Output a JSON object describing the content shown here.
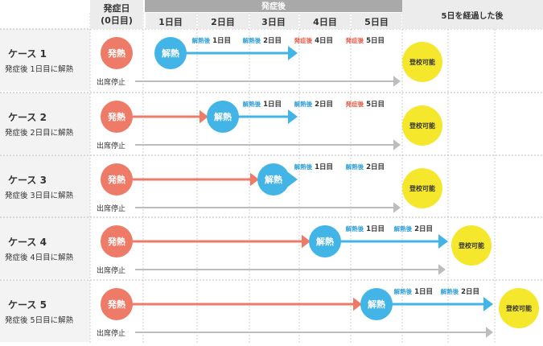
{
  "header": {
    "onset_line1": "発症日",
    "onset_line2": "(0日目)",
    "after_onset": "発症後",
    "days": [
      "1日目",
      "2日目",
      "3日目",
      "4日目",
      "5日目"
    ],
    "after_five": "5日を経過した後"
  },
  "labels": {
    "fever": "発熱",
    "fever_resolved": "解熱",
    "attendance_stop": "出席停止",
    "can_attend": "登校可能"
  },
  "cases": [
    {
      "title": "ケース 1",
      "subtitle": "発症後 1日目に解熱",
      "resolve_day": 1,
      "annotations": [
        {
          "prefix": "解熱後",
          "count": "1日目",
          "kind": "blue"
        },
        {
          "prefix": "解熱後",
          "count": "2日目",
          "kind": "blue"
        },
        {
          "prefix": "発症後",
          "count": "4日目",
          "kind": "red"
        },
        {
          "prefix": "発症後",
          "count": "5日目",
          "kind": "red"
        }
      ]
    },
    {
      "title": "ケース 2",
      "subtitle": "発症後 2日目に解熱",
      "resolve_day": 2,
      "annotations": [
        {
          "prefix": "解熱後",
          "count": "1日目",
          "kind": "blue"
        },
        {
          "prefix": "解熱後",
          "count": "2日目",
          "kind": "blue"
        },
        {
          "prefix": "発症後",
          "count": "5日目",
          "kind": "red"
        }
      ]
    },
    {
      "title": "ケース 3",
      "subtitle": "発症後 3日目に解熱",
      "resolve_day": 3,
      "annotations": [
        {
          "prefix": "解熱後",
          "count": "1日目",
          "kind": "blue"
        },
        {
          "prefix": "解熱後",
          "count": "2日目",
          "kind": "blue"
        }
      ]
    },
    {
      "title": "ケース 4",
      "subtitle": "発症後 4日目に解熱",
      "resolve_day": 4,
      "annotations": [
        {
          "prefix": "解熱後",
          "count": "1日目",
          "kind": "blue"
        },
        {
          "prefix": "解熱後",
          "count": "2日目",
          "kind": "blue"
        }
      ]
    },
    {
      "title": "ケース 5",
      "subtitle": "発症後 5日目に解熱",
      "resolve_day": 5,
      "annotations": [
        {
          "prefix": "解熱後",
          "count": "1日目",
          "kind": "blue"
        },
        {
          "prefix": "解熱後",
          "count": "2日目",
          "kind": "blue"
        }
      ]
    }
  ],
  "colors": {
    "fever": "#ee7b68",
    "resolved": "#42b4e6",
    "attend": "#f5e82c",
    "stop_arrow": "#bdbdbd",
    "header_dark": "#a9a9a9",
    "header_light": "#ececec",
    "row_bg": "#f3f3f3",
    "annot_red": "#e95a47",
    "annot_blue": "#2f9fd8"
  }
}
